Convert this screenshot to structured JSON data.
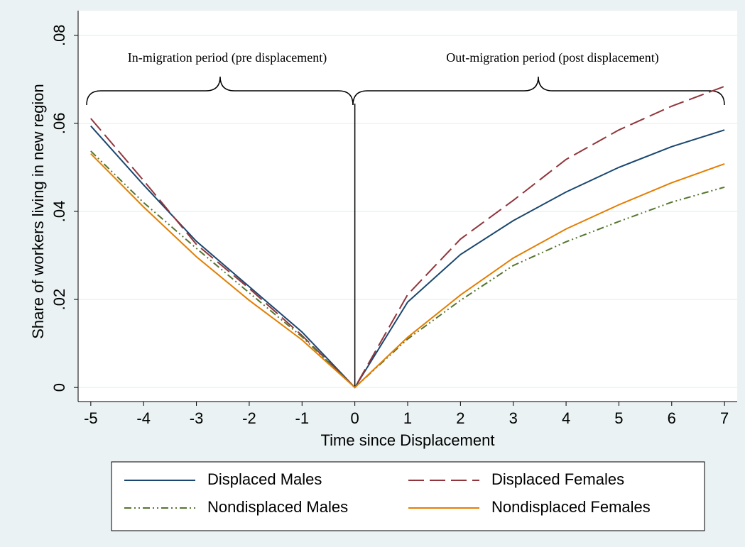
{
  "chart_data": {
    "type": "line",
    "xlabel": "Time since Displacement",
    "ylabel": "Share of workers living in new region",
    "annotations": [
      "In-migration period (pre displacement)",
      "Out-migration period (post displacement)"
    ],
    "x": [
      -5,
      -4,
      -3,
      -2,
      -1,
      0,
      1,
      2,
      3,
      4,
      5,
      6,
      7
    ],
    "series": [
      {
        "name": "Displaced Males",
        "color": "#1a476f",
        "dash": "solid",
        "values": [
          0.0594,
          0.046,
          0.0332,
          0.0229,
          0.0126,
          0,
          0.0194,
          0.0302,
          0.0379,
          0.0444,
          0.05,
          0.0547,
          0.0585
        ]
      },
      {
        "name": "Displaced Females",
        "color": "#90353b",
        "dash": "longdash",
        "values": [
          0.0611,
          0.047,
          0.0325,
          0.0225,
          0.0118,
          0,
          0.0211,
          0.0337,
          0.0425,
          0.0518,
          0.0585,
          0.0639,
          0.0684
        ]
      },
      {
        "name": "Nondisplaced Males",
        "color": "#55752f",
        "dash": "dashdotdot",
        "values": [
          0.0537,
          0.042,
          0.0316,
          0.0215,
          0.0115,
          0,
          0.011,
          0.0198,
          0.0277,
          0.0331,
          0.0377,
          0.0421,
          0.0455
        ]
      },
      {
        "name": "Nondisplaced Females",
        "color": "#e37e00",
        "dash": "solid",
        "values": [
          0.0531,
          0.041,
          0.0297,
          0.0198,
          0.0108,
          0,
          0.0114,
          0.021,
          0.0294,
          0.036,
          0.0415,
          0.0465,
          0.0508
        ]
      }
    ],
    "xlim": [
      -5.24,
      7.24
    ],
    "xticks": [
      -5,
      -4,
      -3,
      -2,
      -1,
      0,
      1,
      2,
      3,
      4,
      5,
      6,
      7
    ],
    "ylim": [
      -0.0032,
      0.0856
    ],
    "yticks": [
      {
        "value": 0,
        "label": "0"
      },
      {
        "value": 0.02,
        "label": ".02"
      },
      {
        "value": 0.04,
        "label": ".04"
      },
      {
        "value": 0.06,
        "label": ".06"
      },
      {
        "value": 0.08,
        "label": ".08"
      }
    ],
    "grid": true,
    "xline": 0,
    "legend": "bottom"
  }
}
